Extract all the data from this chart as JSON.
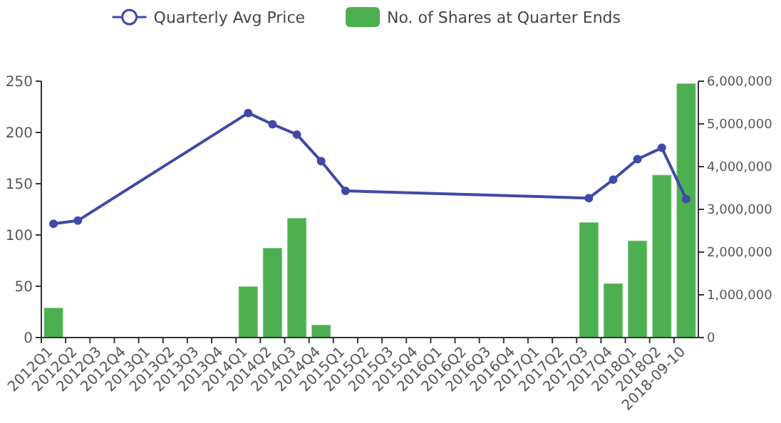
{
  "chart_data": {
    "type": "bar",
    "categories": [
      "2012Q1",
      "2012Q2",
      "2012Q3",
      "2012Q4",
      "2013Q1",
      "2013Q2",
      "2013Q3",
      "2013Q4",
      "2014Q1",
      "2014Q2",
      "2014Q3",
      "2014Q4",
      "2015Q1",
      "2015Q2",
      "2015Q3",
      "2015Q4",
      "2016Q1",
      "2016Q2",
      "2016Q3",
      "2016Q4",
      "2017Q1",
      "2017Q2",
      "2017Q3",
      "2017Q4",
      "2018Q1",
      "2018Q2",
      "2018-09-10"
    ],
    "series": [
      {
        "name": "Quarterly Avg Price",
        "type": "line",
        "color": "#3f4aa8",
        "marker": "circle",
        "values": [
          111,
          114,
          null,
          null,
          null,
          null,
          null,
          null,
          219,
          208,
          198,
          172,
          143,
          null,
          null,
          null,
          null,
          null,
          null,
          null,
          null,
          null,
          136,
          154,
          174,
          185,
          135
        ]
      },
      {
        "name": "No. of Shares at Quarter Ends",
        "axis": "y2",
        "color": "#4caf50",
        "values": [
          700000,
          null,
          null,
          null,
          null,
          null,
          null,
          null,
          1200000,
          2100000,
          2800000,
          300000,
          null,
          null,
          null,
          null,
          null,
          null,
          null,
          null,
          null,
          null,
          2700000,
          1270000,
          2270000,
          3810000,
          5950000
        ]
      }
    ],
    "ylim": [
      0,
      250
    ],
    "yticks": [
      0,
      50,
      100,
      150,
      200,
      250
    ],
    "y2lim": [
      0,
      6000000
    ],
    "y2ticks": [
      {
        "value": 0,
        "label": "0"
      },
      {
        "value": 1000000,
        "label": "1,000,000"
      },
      {
        "value": 2000000,
        "label": "2,000,000"
      },
      {
        "value": 3000000,
        "label": "3,000,000"
      },
      {
        "value": 4000000,
        "label": "4,000,000"
      },
      {
        "value": 5000000,
        "label": "5,000,000"
      },
      {
        "value": 6000000,
        "label": "6,000,000"
      }
    ],
    "grid": false,
    "legend": "top"
  }
}
